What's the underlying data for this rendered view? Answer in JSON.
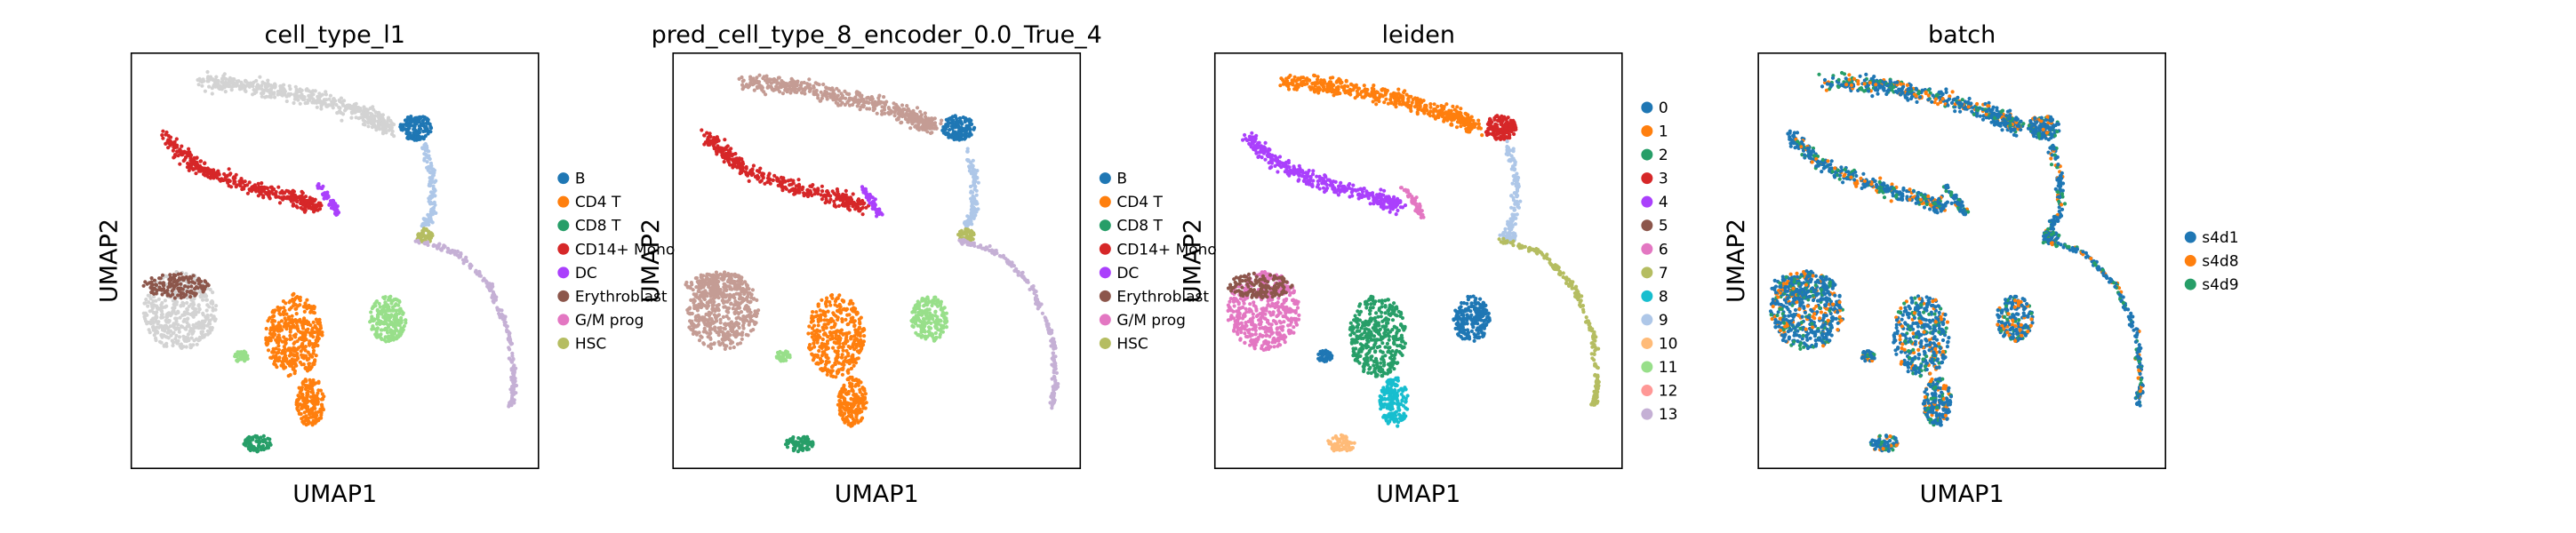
{
  "chart_data": [
    {
      "type": "scatter",
      "title": "cell_type_l1",
      "xlabel": "UMAP1",
      "ylabel": "UMAP2",
      "grid": false,
      "legend": "right",
      "legend_entries": [
        {
          "name": "B",
          "color": "#1f77b4"
        },
        {
          "name": "CD4 T",
          "color": "#ff7f0e"
        },
        {
          "name": "CD8 T",
          "color": "#279e68"
        },
        {
          "name": "CD14+ Mono",
          "color": "#d62728"
        },
        {
          "name": "DC",
          "color": "#aa40fc"
        },
        {
          "name": "Erythroblast",
          "color": "#8c564b"
        },
        {
          "name": "G/M prog",
          "color": "#e377c2"
        },
        {
          "name": "HSC",
          "color": "#b5bd61"
        }
      ]
    },
    {
      "type": "scatter",
      "title": "pred_cell_type_8_encoder_0.0_True_4",
      "xlabel": "UMAP1",
      "ylabel": "UMAP2",
      "grid": false,
      "legend": "right",
      "legend_entries": [
        {
          "name": "B",
          "color": "#1f77b4"
        },
        {
          "name": "CD4 T",
          "color": "#ff7f0e"
        },
        {
          "name": "CD8 T",
          "color": "#279e68"
        },
        {
          "name": "CD14+ Mono",
          "color": "#d62728"
        },
        {
          "name": "DC",
          "color": "#aa40fc"
        },
        {
          "name": "Erythroblast",
          "color": "#8c564b"
        },
        {
          "name": "G/M prog",
          "color": "#e377c2"
        },
        {
          "name": "HSC",
          "color": "#b5bd61"
        }
      ]
    },
    {
      "type": "scatter",
      "title": "leiden",
      "xlabel": "UMAP1",
      "ylabel": "UMAP2",
      "grid": false,
      "legend": "right",
      "legend_entries": [
        {
          "name": "0",
          "color": "#1f77b4"
        },
        {
          "name": "1",
          "color": "#ff7f0e"
        },
        {
          "name": "2",
          "color": "#279e68"
        },
        {
          "name": "3",
          "color": "#d62728"
        },
        {
          "name": "4",
          "color": "#aa40fc"
        },
        {
          "name": "5",
          "color": "#8c564b"
        },
        {
          "name": "6",
          "color": "#e377c2"
        },
        {
          "name": "7",
          "color": "#b5bd61"
        },
        {
          "name": "8",
          "color": "#17becf"
        },
        {
          "name": "9",
          "color": "#aec7e8"
        },
        {
          "name": "10",
          "color": "#ffbb78"
        },
        {
          "name": "11",
          "color": "#98df8a"
        },
        {
          "name": "12",
          "color": "#ff9896"
        },
        {
          "name": "13",
          "color": "#c5b0d5"
        }
      ]
    },
    {
      "type": "scatter",
      "title": "batch",
      "xlabel": "UMAP1",
      "ylabel": "UMAP2",
      "grid": false,
      "legend": "right",
      "legend_entries": [
        {
          "name": "s4d1",
          "color": "#1f77b4"
        },
        {
          "name": "s4d8",
          "color": "#ff7f0e"
        },
        {
          "name": "s4d9",
          "color": "#279e68"
        }
      ]
    }
  ]
}
